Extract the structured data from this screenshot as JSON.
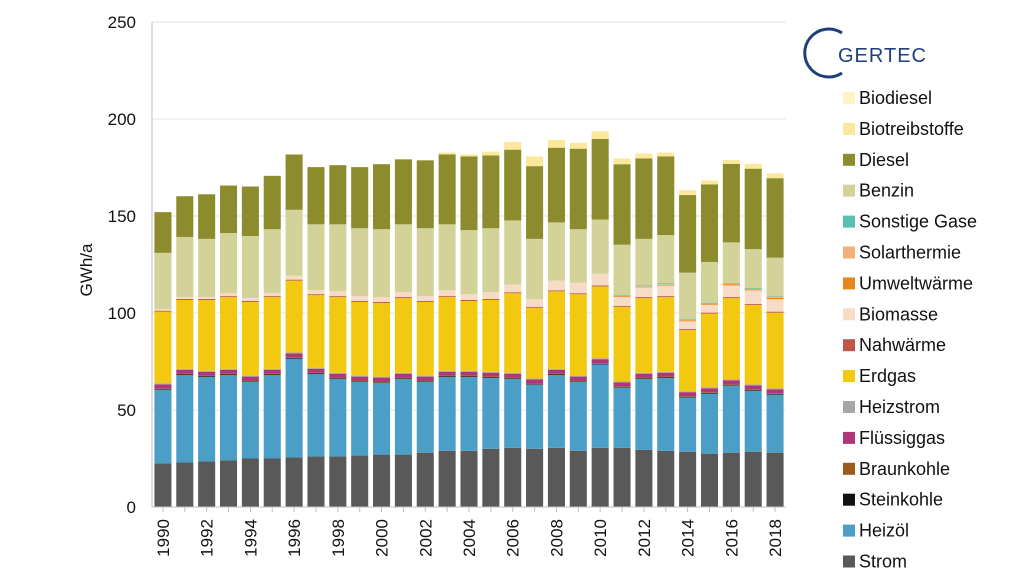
{
  "logo": {
    "text": "GERTEC"
  },
  "chart_data": {
    "type": "bar",
    "stacked": true,
    "ylabel": "GWh/a",
    "xlabel": "",
    "ylim": [
      0,
      250
    ],
    "yticks": [
      0,
      50,
      100,
      150,
      200,
      250
    ],
    "grid": true,
    "legend_position": "right",
    "categories": [
      "1990",
      "1991",
      "1992",
      "1993",
      "1994",
      "1995",
      "1996",
      "1997",
      "1998",
      "1999",
      "2000",
      "2001",
      "2002",
      "2003",
      "2004",
      "2005",
      "2006",
      "2007",
      "2008",
      "2009",
      "2010",
      "2011",
      "2012",
      "2013",
      "2014",
      "2015",
      "2016",
      "2017",
      "2018"
    ],
    "xtick_labels": [
      "1990",
      "1992",
      "1994",
      "1996",
      "1998",
      "2000",
      "2002",
      "2004",
      "2006",
      "2008",
      "2010",
      "2012",
      "2014",
      "2016",
      "2018"
    ],
    "series": [
      {
        "name": "Strom",
        "color": "#595959",
        "values": [
          22.5,
          23,
          23.5,
          24,
          25,
          25,
          25.5,
          26,
          26,
          26.5,
          27,
          27,
          28,
          29,
          29,
          30,
          30.5,
          30,
          30.5,
          29,
          30.5,
          30.5,
          29.5,
          29,
          28.5,
          27.5,
          28,
          28.5,
          28
        ]
      },
      {
        "name": "Heizöl",
        "color": "#4b9fc7",
        "values": [
          38,
          45,
          43.5,
          44,
          39.5,
          43,
          51,
          42.5,
          40,
          38,
          37,
          39,
          36.5,
          38,
          38,
          36.5,
          35.5,
          33,
          37.5,
          35.5,
          43,
          31,
          36.5,
          37.5,
          28,
          31,
          34.5,
          31.5,
          30
        ]
      },
      {
        "name": "Steinkohle",
        "color": "#111111",
        "values": [
          0.3,
          0.3,
          0.3,
          0.3,
          0.3,
          0.3,
          0.3,
          0.3,
          0.3,
          0.3,
          0.3,
          0.3,
          0.3,
          0.3,
          0.3,
          0.3,
          0.3,
          0.3,
          0.3,
          0.3,
          0.3,
          0.3,
          0.3,
          0.3,
          0.3,
          0.3,
          0.3,
          0.3,
          0.3
        ]
      },
      {
        "name": "Braunkohle",
        "color": "#9b5b1e",
        "values": [
          0.4,
          0.4,
          0.4,
          0.4,
          0.4,
          0.4,
          0.4,
          0.4,
          0.4,
          0.4,
          0.4,
          0.4,
          0.4,
          0.4,
          0.4,
          0.4,
          0.4,
          0.4,
          0.4,
          0.4,
          0.4,
          0.4,
          0.4,
          0.4,
          0.4,
          0.4,
          0.4,
          0.4,
          0.4
        ]
      },
      {
        "name": "Flüssiggas",
        "color": "#b0367a",
        "values": [
          2,
          2,
          2,
          2,
          2,
          2,
          2,
          2,
          2,
          2,
          2,
          2,
          2,
          2,
          2,
          2,
          2,
          2,
          2,
          2,
          2,
          2,
          2,
          2,
          2,
          2,
          2,
          2,
          2
        ]
      },
      {
        "name": "Heizstrom",
        "color": "#a6a6a6",
        "values": [
          0.5,
          0.5,
          0.5,
          0.5,
          0.5,
          0.5,
          0.5,
          0.5,
          0.5,
          0.5,
          0.5,
          0.5,
          0.5,
          0.5,
          0.5,
          0.5,
          0.5,
          0.5,
          0.5,
          0.5,
          0.5,
          0.5,
          0.5,
          0.5,
          0.5,
          0.5,
          0.5,
          0.5,
          0.5
        ]
      },
      {
        "name": "Erdgas",
        "color": "#f2c811",
        "values": [
          37,
          35.5,
          36.5,
          37,
          38,
          37,
          37,
          37.5,
          39,
          38,
          38,
          38.5,
          38,
          38,
          36,
          37,
          41,
          36.5,
          40,
          42,
          37,
          38.5,
          38.5,
          38.5,
          31.5,
          38,
          42,
          41,
          39
        ]
      },
      {
        "name": "Nahwärme",
        "color": "#c0564b",
        "values": [
          0.5,
          0.5,
          0.5,
          0.5,
          0.5,
          0.5,
          0.5,
          0.5,
          0.5,
          0.5,
          0.5,
          0.5,
          0.5,
          0.5,
          0.5,
          0.5,
          0.5,
          0.5,
          0.5,
          0.5,
          0.5,
          0.5,
          0.5,
          0.5,
          0.5,
          0.5,
          0.5,
          0.5,
          0.5
        ]
      },
      {
        "name": "Biomasse",
        "color": "#f6dcc4",
        "values": [
          0.8,
          1,
          1,
          1.5,
          1.5,
          1.5,
          2,
          2,
          2.5,
          2.5,
          2.5,
          2.5,
          2.5,
          3,
          3,
          3.5,
          4,
          4,
          5,
          5.5,
          6,
          4.5,
          5,
          5.5,
          4,
          4,
          6,
          7,
          6.5
        ]
      },
      {
        "name": "Umweltwärme",
        "color": "#e8861e",
        "values": [
          0,
          0,
          0,
          0,
          0,
          0,
          0,
          0,
          0,
          0,
          0,
          0,
          0,
          0,
          0,
          0,
          0,
          0,
          0,
          0,
          0,
          0.3,
          0.3,
          0.3,
          0.4,
          0.4,
          0.5,
          0.5,
          0.6
        ]
      },
      {
        "name": "Solarthermie",
        "color": "#f0b27a",
        "values": [
          0,
          0,
          0,
          0,
          0,
          0,
          0,
          0,
          0,
          0,
          0,
          0,
          0,
          0,
          0,
          0,
          0,
          0,
          0,
          0,
          0,
          0.3,
          0.3,
          0.3,
          0.3,
          0.3,
          0.3,
          0.3,
          0.3
        ]
      },
      {
        "name": "Sonstige Gase",
        "color": "#5bbfb0",
        "values": [
          0,
          0,
          0,
          0,
          0,
          0,
          0,
          0,
          0,
          0,
          0,
          0,
          0,
          0,
          0,
          0,
          0,
          0,
          0,
          0,
          0,
          0.4,
          0.4,
          0.4,
          0.4,
          0.4,
          0.4,
          0.4,
          0.4
        ]
      },
      {
        "name": "Benzin",
        "color": "#d3d399",
        "values": [
          29,
          31,
          30,
          31,
          32,
          33,
          34,
          34,
          34.5,
          35,
          35,
          35,
          35,
          34,
          33,
          33,
          33,
          31,
          30,
          27.5,
          28,
          26,
          24,
          25,
          24,
          21,
          21,
          20,
          20
        ]
      },
      {
        "name": "Diesel",
        "color": "#8c8c2e",
        "values": [
          21,
          21,
          23,
          24.5,
          25.5,
          27.5,
          28.5,
          29.5,
          30.5,
          31.5,
          33.5,
          33.5,
          35,
          36,
          38,
          37.5,
          36.5,
          37.5,
          38.5,
          41.5,
          41.5,
          41.5,
          41.5,
          40.5,
          40,
          40,
          40.5,
          41.5,
          41
        ]
      },
      {
        "name": "Biotreibstoffe",
        "color": "#fbe89a",
        "values": [
          0,
          0,
          0,
          0,
          0,
          0,
          0,
          0,
          0,
          0,
          0,
          0,
          0,
          1,
          1,
          2,
          4,
          5,
          4,
          3,
          4,
          3,
          2.5,
          2,
          2.5,
          2,
          2,
          2.5,
          2.5
        ]
      },
      {
        "name": "Biodiesel",
        "color": "#fff3c2",
        "values": [
          0,
          0,
          0,
          0,
          0,
          0,
          0,
          0,
          0,
          0,
          0,
          0,
          0,
          0,
          0,
          0,
          0,
          0,
          0,
          0,
          0,
          0,
          0,
          0,
          0,
          0,
          0,
          0,
          0
        ]
      }
    ]
  }
}
